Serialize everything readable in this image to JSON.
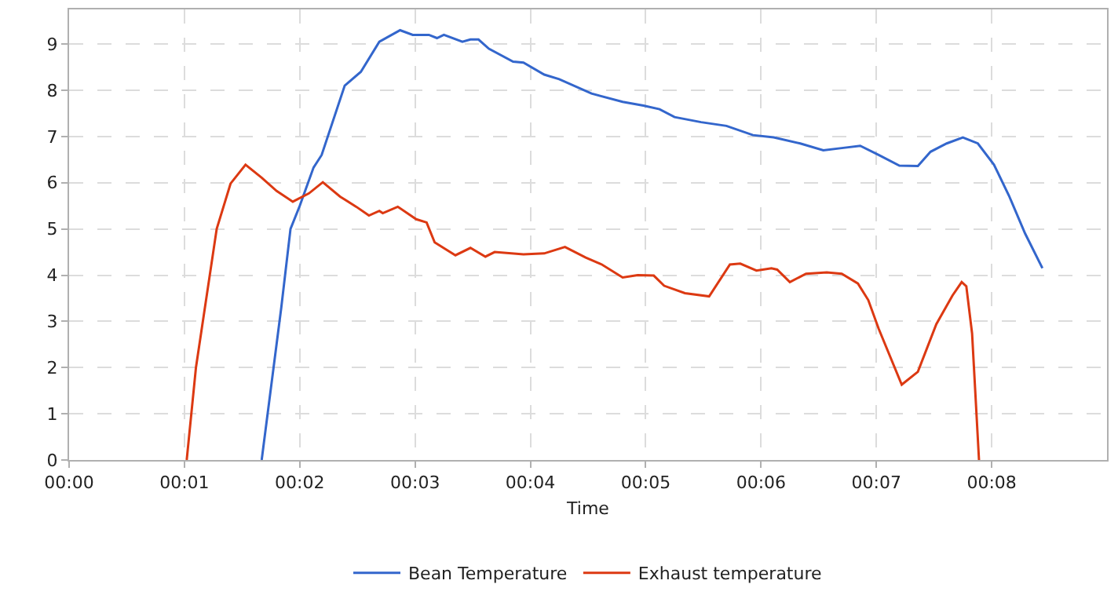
{
  "chart_data": {
    "type": "line",
    "xlabel": "Time",
    "xlim": [
      0,
      9
    ],
    "ylim": [
      0,
      9.75
    ],
    "xticks": [
      {
        "value": 0,
        "label": "00:00"
      },
      {
        "value": 1,
        "label": "00:01"
      },
      {
        "value": 2,
        "label": "00:02"
      },
      {
        "value": 3,
        "label": "00:03"
      },
      {
        "value": 4,
        "label": "00:04"
      },
      {
        "value": 5,
        "label": "00:05"
      },
      {
        "value": 6,
        "label": "00:06"
      },
      {
        "value": 7,
        "label": "00:07"
      },
      {
        "value": 8,
        "label": "00:08"
      }
    ],
    "yticks": [
      0,
      1,
      2,
      3,
      4,
      5,
      6,
      7,
      8,
      9
    ],
    "grid": true,
    "legend": "bottom",
    "marker": "none",
    "line_style": "solid",
    "series": [
      {
        "name": "Bean Temperature",
        "color": "#3366cc",
        "x": [
          1.67,
          1.84,
          1.92,
          2.0,
          2.12,
          2.19,
          2.39,
          2.53,
          2.69,
          2.87,
          2.98,
          3.12,
          3.19,
          3.25,
          3.41,
          3.48,
          3.55,
          3.64,
          3.85,
          3.94,
          4.12,
          4.25,
          4.53,
          4.8,
          4.98,
          5.12,
          5.25,
          5.48,
          5.7,
          5.93,
          6.11,
          6.34,
          6.54,
          6.7,
          6.86,
          7.02,
          7.2,
          7.36,
          7.47,
          7.61,
          7.75,
          7.88,
          8.02,
          8.15,
          8.29,
          8.44
        ],
        "values": [
          0,
          3.3,
          5.0,
          5.5,
          6.33,
          6.6,
          8.1,
          8.4,
          9.05,
          9.3,
          9.2,
          9.2,
          9.13,
          9.2,
          9.05,
          9.1,
          9.1,
          8.9,
          8.62,
          8.6,
          8.34,
          8.24,
          7.93,
          7.75,
          7.67,
          7.59,
          7.42,
          7.31,
          7.23,
          7.03,
          6.98,
          6.85,
          6.7,
          6.75,
          6.8,
          6.6,
          6.37,
          6.36,
          6.67,
          6.85,
          6.98,
          6.85,
          6.39,
          5.72,
          4.9,
          4.15
        ]
      },
      {
        "name": "Exhaust temperature",
        "color": "#dc3912",
        "x": [
          1.02,
          1.1,
          1.28,
          1.4,
          1.53,
          1.67,
          1.8,
          1.94,
          2.08,
          2.2,
          2.35,
          2.49,
          2.6,
          2.69,
          2.72,
          2.85,
          3.01,
          3.1,
          3.17,
          3.35,
          3.48,
          3.61,
          3.69,
          3.94,
          4.12,
          4.3,
          4.48,
          4.62,
          4.8,
          4.93,
          5.07,
          5.16,
          5.34,
          5.55,
          5.73,
          5.82,
          5.96,
          6.09,
          6.14,
          6.25,
          6.39,
          6.57,
          6.7,
          6.84,
          6.93,
          7.02,
          7.22,
          7.36,
          7.52,
          7.66,
          7.74,
          7.78,
          7.83,
          7.89
        ],
        "values": [
          0,
          2.0,
          5.0,
          5.98,
          6.39,
          6.11,
          5.82,
          5.59,
          5.77,
          6.01,
          5.7,
          5.48,
          5.29,
          5.39,
          5.34,
          5.48,
          5.21,
          5.14,
          4.71,
          4.43,
          4.59,
          4.4,
          4.5,
          4.45,
          4.47,
          4.61,
          4.38,
          4.23,
          3.95,
          4.0,
          3.99,
          3.77,
          3.61,
          3.54,
          4.23,
          4.25,
          4.1,
          4.15,
          4.12,
          3.85,
          4.03,
          4.06,
          4.03,
          3.82,
          3.46,
          2.84,
          1.63,
          1.91,
          2.94,
          3.56,
          3.85,
          3.76,
          2.74,
          0
        ]
      }
    ]
  }
}
